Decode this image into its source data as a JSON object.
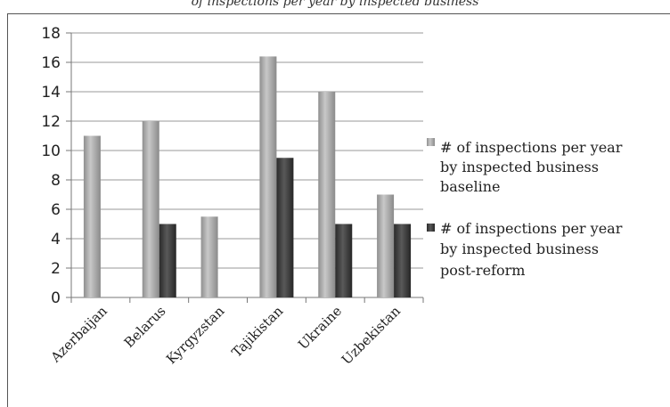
{
  "caption": "of inspections per year by inspected business",
  "chart_data": {
    "type": "bar",
    "title": "",
    "xlabel": "",
    "ylabel": "",
    "ylim": [
      0,
      18
    ],
    "yticks": [
      0,
      2,
      4,
      6,
      8,
      10,
      12,
      14,
      16,
      18
    ],
    "categories": [
      "Azerbaijan",
      "Belarus",
      "Kyrgyzstan",
      "Tajikistan",
      "Ukraine",
      "Uzbekistan"
    ],
    "series": [
      {
        "name": "# of inspections per year by inspected business baseline",
        "legend_lines": [
          "# of inspections per year",
          "by inspected business",
          "baseline"
        ],
        "color": "#a6a6a6",
        "values": [
          11,
          12,
          5.5,
          16.4,
          14,
          7
        ]
      },
      {
        "name": "# of inspections per year by inspected business post-reform",
        "legend_lines": [
          "# of inspections per year",
          "by inspected business",
          "post-reform"
        ],
        "color": "#3a3a3a",
        "values": [
          null,
          5,
          null,
          9.5,
          5,
          5
        ]
      }
    ],
    "grid": true,
    "legend_position": "right"
  }
}
